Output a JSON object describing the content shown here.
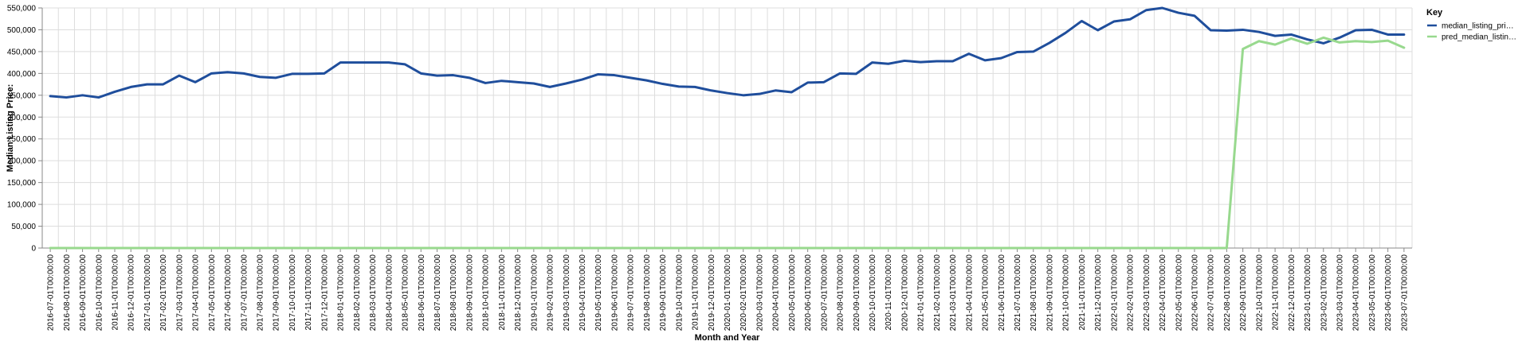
{
  "chart_data": {
    "type": "line",
    "title": "",
    "xlabel": "Month and Year",
    "ylabel": "Median Listing Price:",
    "ylim": [
      0,
      550000
    ],
    "yticks": [
      "0",
      "50,000",
      "100,000",
      "150,000",
      "200,000",
      "250,000",
      "300,000",
      "350,000",
      "400,000",
      "450,000",
      "500,000",
      "550,000"
    ],
    "grid": true,
    "legend": {
      "title": "Key",
      "placement": "right"
    },
    "x": [
      "2016-07-01T00:00:00",
      "2016-08-01T00:00:00",
      "2016-09-01T00:00:00",
      "2016-10-01T00:00:00",
      "2016-11-01T00:00:00",
      "2016-12-01T00:00:00",
      "2017-01-01T00:00:00",
      "2017-02-01T00:00:00",
      "2017-03-01T00:00:00",
      "2017-04-01T00:00:00",
      "2017-05-01T00:00:00",
      "2017-06-01T00:00:00",
      "2017-07-01T00:00:00",
      "2017-08-01T00:00:00",
      "2017-09-01T00:00:00",
      "2017-10-01T00:00:00",
      "2017-11-01T00:00:00",
      "2017-12-01T00:00:00",
      "2018-01-01T00:00:00",
      "2018-02-01T00:00:00",
      "2018-03-01T00:00:00",
      "2018-04-01T00:00:00",
      "2018-05-01T00:00:00",
      "2018-06-01T00:00:00",
      "2018-07-01T00:00:00",
      "2018-08-01T00:00:00",
      "2018-09-01T00:00:00",
      "2018-10-01T00:00:00",
      "2018-11-01T00:00:00",
      "2018-12-01T00:00:00",
      "2019-01-01T00:00:00",
      "2019-02-01T00:00:00",
      "2019-03-01T00:00:00",
      "2019-04-01T00:00:00",
      "2019-05-01T00:00:00",
      "2019-06-01T00:00:00",
      "2019-07-01T00:00:00",
      "2019-08-01T00:00:00",
      "2019-09-01T00:00:00",
      "2019-10-01T00:00:00",
      "2019-11-01T00:00:00",
      "2019-12-01T00:00:00",
      "2020-01-01T00:00:00",
      "2020-02-01T00:00:00",
      "2020-03-01T00:00:00",
      "2020-04-01T00:00:00",
      "2020-05-01T00:00:00",
      "2020-06-01T00:00:00",
      "2020-07-01T00:00:00",
      "2020-08-01T00:00:00",
      "2020-09-01T00:00:00",
      "2020-10-01T00:00:00",
      "2020-11-01T00:00:00",
      "2020-12-01T00:00:00",
      "2021-01-01T00:00:00",
      "2021-02-01T00:00:00",
      "2021-03-01T00:00:00",
      "2021-04-01T00:00:00",
      "2021-05-01T00:00:00",
      "2021-06-01T00:00:00",
      "2021-07-01T00:00:00",
      "2021-08-01T00:00:00",
      "2021-09-01T00:00:00",
      "2021-10-01T00:00:00",
      "2021-11-01T00:00:00",
      "2021-12-01T00:00:00",
      "2022-01-01T00:00:00",
      "2022-02-01T00:00:00",
      "2022-03-01T00:00:00",
      "2022-04-01T00:00:00",
      "2022-05-01T00:00:00",
      "2022-06-01T00:00:00",
      "2022-07-01T00:00:00",
      "2022-08-01T00:00:00",
      "2022-09-01T00:00:00",
      "2022-10-01T00:00:00",
      "2022-11-01T00:00:00",
      "2022-12-01T00:00:00",
      "2023-01-01T00:00:00",
      "2023-02-01T00:00:00",
      "2023-03-01T00:00:00",
      "2023-04-01T00:00:00",
      "2023-05-01T00:00:00",
      "2023-06-01T00:00:00",
      "2023-07-01T00:00:00"
    ],
    "series": [
      {
        "name": "median_listing_pri…",
        "color": "#1f4e9c",
        "values": [
          348000,
          345000,
          350000,
          345000,
          358000,
          369000,
          375000,
          375000,
          395000,
          380000,
          400000,
          403000,
          400000,
          392000,
          390000,
          399000,
          399000,
          400000,
          425000,
          425000,
          425000,
          425000,
          421000,
          400000,
          395000,
          396000,
          390000,
          378000,
          383000,
          380000,
          377000,
          369000,
          377000,
          386000,
          398000,
          396000,
          390000,
          384000,
          376000,
          370000,
          369000,
          361000,
          355000,
          350000,
          353000,
          361000,
          357000,
          379000,
          380000,
          400000,
          399000,
          425000,
          422000,
          429000,
          426000,
          428000,
          428000,
          445000,
          430000,
          435000,
          449000,
          450000,
          470000,
          493000,
          520000,
          499000,
          519000,
          524000,
          545000,
          550000,
          539000,
          532000,
          499000,
          498000,
          500000,
          495000,
          486000,
          489000,
          478000,
          469000,
          482000,
          499000,
          500000,
          489000,
          489000
        ]
      },
      {
        "name": "pred_median_listin…",
        "color": "#98d98e",
        "values": [
          0,
          0,
          0,
          0,
          0,
          0,
          0,
          0,
          0,
          0,
          0,
          0,
          0,
          0,
          0,
          0,
          0,
          0,
          0,
          0,
          0,
          0,
          0,
          0,
          0,
          0,
          0,
          0,
          0,
          0,
          0,
          0,
          0,
          0,
          0,
          0,
          0,
          0,
          0,
          0,
          0,
          0,
          0,
          0,
          0,
          0,
          0,
          0,
          0,
          0,
          0,
          0,
          0,
          0,
          0,
          0,
          0,
          0,
          0,
          0,
          0,
          0,
          0,
          0,
          0,
          0,
          0,
          0,
          0,
          0,
          0,
          0,
          0,
          0,
          456000,
          474000,
          466000,
          480000,
          468000,
          482000,
          471000,
          474000,
          472000,
          475000,
          459000
        ]
      }
    ]
  }
}
